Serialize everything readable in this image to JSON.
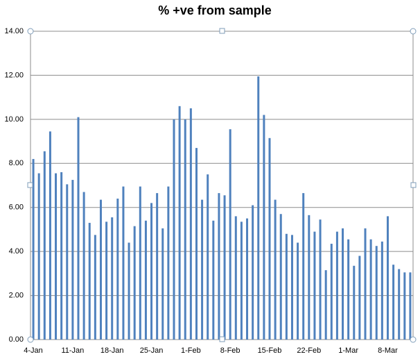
{
  "chart_data": {
    "type": "bar",
    "title": "% +ve from sample",
    "categories": [
      "4-Jan",
      null,
      null,
      null,
      null,
      null,
      null,
      "11-Jan",
      null,
      null,
      null,
      null,
      null,
      null,
      "18-Jan",
      null,
      null,
      null,
      null,
      null,
      null,
      "25-Jan",
      null,
      null,
      null,
      null,
      null,
      null,
      "1-Feb",
      null,
      null,
      null,
      null,
      null,
      null,
      "8-Feb",
      null,
      null,
      null,
      null,
      null,
      null,
      "15-Feb",
      null,
      null,
      null,
      null,
      null,
      null,
      "22-Feb",
      null,
      null,
      null,
      null,
      null,
      null,
      "1-Mar",
      null,
      null,
      null,
      null,
      null,
      null,
      "8-Mar",
      null,
      null,
      null,
      null
    ],
    "values": [
      8.2,
      7.55,
      8.55,
      9.45,
      7.55,
      7.6,
      7.05,
      7.25,
      10.1,
      6.7,
      5.3,
      4.75,
      6.35,
      5.35,
      5.55,
      6.4,
      6.95,
      4.4,
      5.15,
      6.95,
      5.4,
      6.2,
      6.65,
      5.05,
      6.95,
      10.0,
      10.6,
      10.0,
      10.5,
      8.7,
      6.35,
      7.5,
      5.4,
      6.65,
      6.55,
      9.55,
      5.6,
      5.35,
      5.5,
      6.1,
      11.95,
      10.2,
      9.15,
      6.35,
      5.7,
      4.8,
      4.75,
      4.4,
      6.65,
      5.65,
      4.9,
      5.45,
      3.15,
      4.35,
      4.9,
      5.05,
      4.55,
      3.35,
      3.8,
      5.05,
      4.55,
      4.25,
      4.45,
      5.6,
      3.4,
      3.2,
      3.05,
      3.05
    ],
    "color": "#4f81bd",
    "ylim": [
      0,
      14
    ],
    "yticks": [
      {
        "value": 0,
        "label": "0.00"
      },
      {
        "value": 2,
        "label": "2.00"
      },
      {
        "value": 4,
        "label": "4.00"
      },
      {
        "value": 6,
        "label": "6.00"
      },
      {
        "value": 8,
        "label": "8.00"
      },
      {
        "value": 10,
        "label": "10.00"
      },
      {
        "value": 12,
        "label": "12.00"
      },
      {
        "value": 14,
        "label": "14.00"
      }
    ],
    "grid": true
  }
}
